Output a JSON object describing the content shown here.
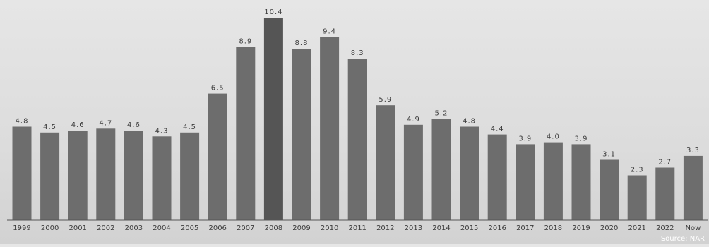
{
  "chart_data": {
    "type": "bar",
    "categories": [
      "1999",
      "2000",
      "2001",
      "2002",
      "2003",
      "2004",
      "2005",
      "2006",
      "2007",
      "2008",
      "2009",
      "2010",
      "2011",
      "2012",
      "2013",
      "2014",
      "2015",
      "2016",
      "2017",
      "2018",
      "2019",
      "2020",
      "2021",
      "2022",
      "Now"
    ],
    "values": [
      4.8,
      4.5,
      4.6,
      4.7,
      4.6,
      4.3,
      4.5,
      6.5,
      8.9,
      10.4,
      8.8,
      9.4,
      8.3,
      5.9,
      4.9,
      5.2,
      4.8,
      4.4,
      3.9,
      4.0,
      3.9,
      3.1,
      2.3,
      2.7,
      3.3
    ],
    "title": "",
    "xlabel": "",
    "ylabel": "",
    "ylim": [
      0,
      10.4
    ],
    "grid": false,
    "legend": "none",
    "bar_color": "#6d6d6d",
    "highlight_category": "2008",
    "highlight_color": "#555555",
    "source_text": "Source: NAR"
  }
}
